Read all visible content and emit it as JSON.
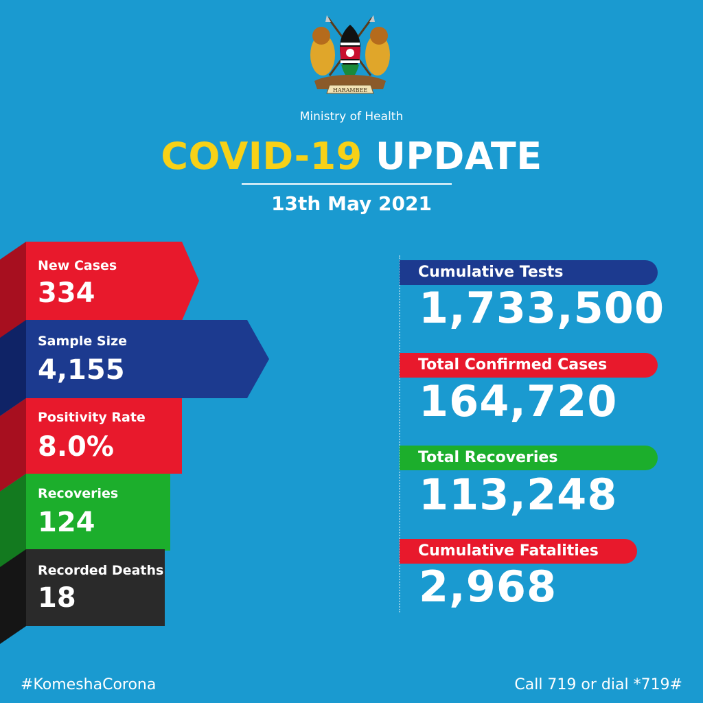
{
  "header": {
    "ministry": "Ministry of Health",
    "title_highlight": "COVID-19",
    "title_rest": "UPDATE",
    "date": "13th May 2021",
    "emblem_motto": "HARAMBEE"
  },
  "daily_stats": [
    {
      "label": "New Cases",
      "value": "334",
      "color": "#e8192c"
    },
    {
      "label": "Sample Size",
      "value": "4,155",
      "color": "#1c3a8f"
    },
    {
      "label": "Positivity Rate",
      "value": "8.0%",
      "color": "#e8192c"
    },
    {
      "label": "Recoveries",
      "value": "124",
      "color": "#1cae2c"
    },
    {
      "label": "Recorded Deaths",
      "value": "18",
      "color": "#2a2a2a"
    }
  ],
  "cumulative_stats": [
    {
      "label": "Cumulative Tests",
      "value": "1,733,500",
      "color": "#1c3a8f"
    },
    {
      "label": "Total Confirmed Cases",
      "value": "164,720",
      "color": "#e8192c"
    },
    {
      "label": "Total Recoveries",
      "value": "113,248",
      "color": "#1cae2c"
    },
    {
      "label": "Cumulative Fatalities",
      "value": "2,968",
      "color": "#e8192c"
    }
  ],
  "footer": {
    "hashtag": "#KomeshaCorona",
    "hotline": "Call 719 or dial *719#"
  },
  "colors": {
    "background": "#1a9ad0",
    "accent_yellow": "#f7d117"
  }
}
